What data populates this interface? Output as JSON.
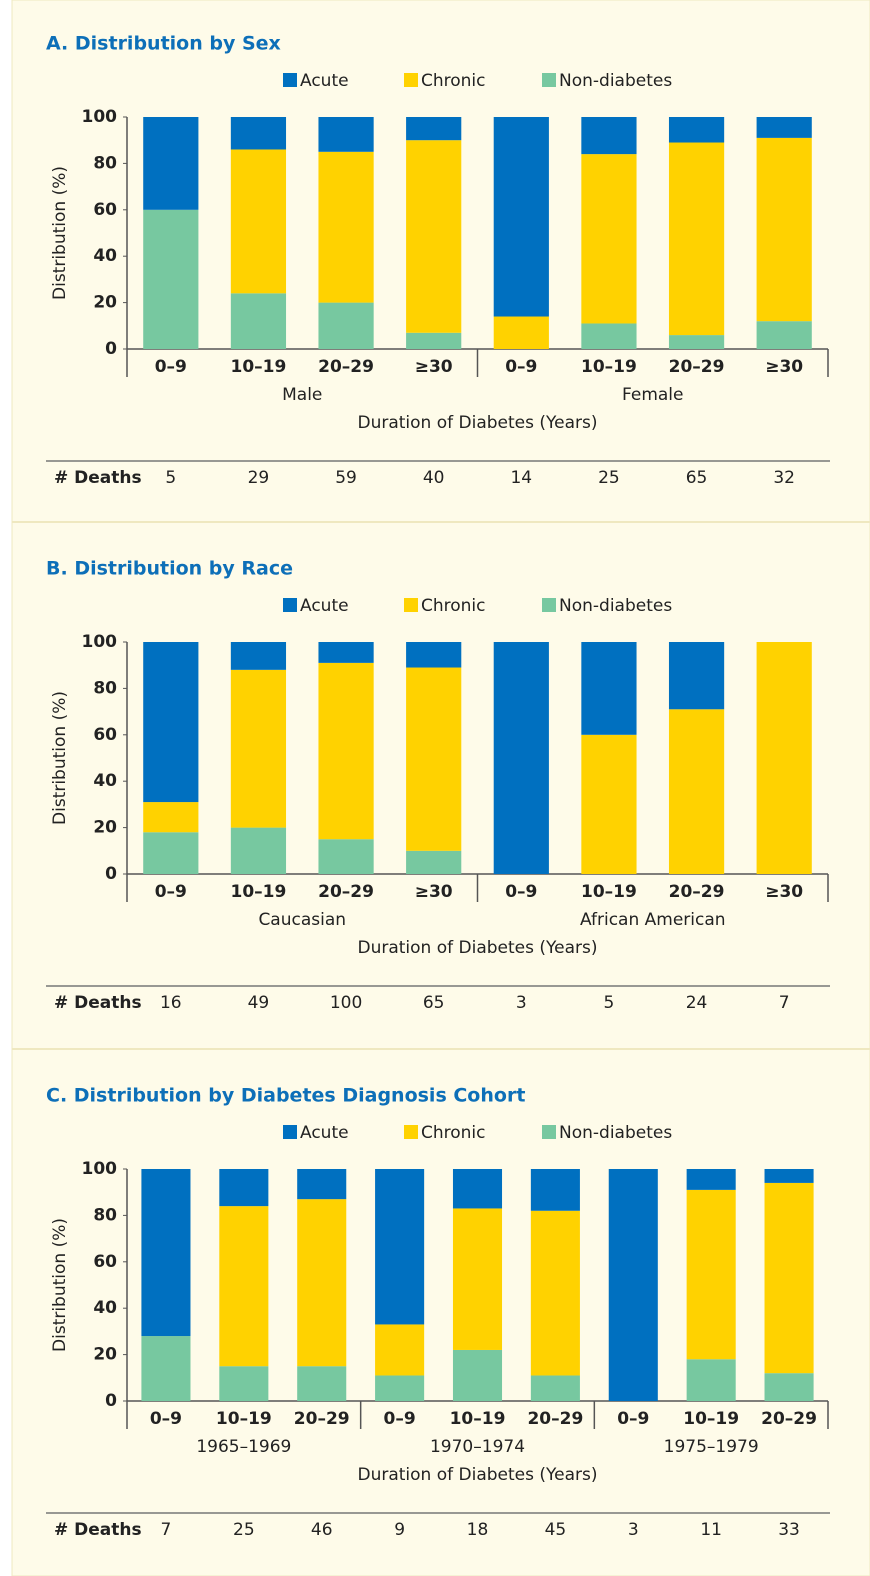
{
  "chart_data": [
    {
      "type": "bar",
      "stacked": true,
      "title": "A. Distribution by Sex",
      "groups": [
        {
          "name": "Male",
          "categories": [
            "0–9",
            "10–19",
            "20–29",
            "≥30"
          ]
        },
        {
          "name": "Female",
          "categories": [
            "0–9",
            "10–19",
            "20–29",
            "≥30"
          ]
        }
      ],
      "xlabel": "Duration of Diabetes (Years)",
      "ylabel": "Distribution (%)",
      "ylim": [
        0,
        100
      ],
      "yticks": [
        0,
        20,
        40,
        60,
        80,
        100
      ],
      "series": [
        {
          "name": "Non-diabetes",
          "color": "#77c8a0",
          "values": [
            60,
            24,
            20,
            7,
            0,
            11,
            6,
            12
          ]
        },
        {
          "name": "Chronic",
          "color": "#ffd200",
          "values": [
            0,
            62,
            65,
            83,
            14,
            73,
            83,
            79
          ]
        },
        {
          "name": "Acute",
          "color": "#0070c0",
          "values": [
            40,
            14,
            15,
            10,
            86,
            16,
            11,
            9
          ]
        }
      ],
      "legend_order": [
        "Acute",
        "Chronic",
        "Non-diabetes"
      ],
      "deaths_label": "# Deaths",
      "deaths": [
        5,
        29,
        59,
        40,
        14,
        25,
        65,
        32
      ]
    },
    {
      "type": "bar",
      "stacked": true,
      "title": "B. Distribution by Race",
      "groups": [
        {
          "name": "Caucasian",
          "categories": [
            "0–9",
            "10–19",
            "20–29",
            "≥30"
          ]
        },
        {
          "name": "African American",
          "categories": [
            "0–9",
            "10–19",
            "20–29",
            "≥30"
          ]
        }
      ],
      "xlabel": "Duration of Diabetes (Years)",
      "ylabel": "Distribution (%)",
      "ylim": [
        0,
        100
      ],
      "yticks": [
        0,
        20,
        40,
        60,
        80,
        100
      ],
      "series": [
        {
          "name": "Non-diabetes",
          "color": "#77c8a0",
          "values": [
            18,
            20,
            15,
            10,
            0,
            0,
            0,
            0
          ]
        },
        {
          "name": "Chronic",
          "color": "#ffd200",
          "values": [
            13,
            68,
            76,
            79,
            0,
            60,
            71,
            100
          ]
        },
        {
          "name": "Acute",
          "color": "#0070c0",
          "values": [
            69,
            12,
            9,
            11,
            100,
            40,
            29,
            0
          ]
        }
      ],
      "legend_order": [
        "Acute",
        "Chronic",
        "Non-diabetes"
      ],
      "deaths_label": "# Deaths",
      "deaths": [
        16,
        49,
        100,
        65,
        3,
        5,
        24,
        7
      ]
    },
    {
      "type": "bar",
      "stacked": true,
      "title": "C. Distribution by Diabetes Diagnosis Cohort",
      "groups": [
        {
          "name": "1965–1969",
          "categories": [
            "0–9",
            "10–19",
            "20–29"
          ]
        },
        {
          "name": "1970–1974",
          "categories": [
            "0–9",
            "10–19",
            "20–29"
          ]
        },
        {
          "name": "1975–1979",
          "categories": [
            "0–9",
            "10–19",
            "20–29"
          ]
        }
      ],
      "xlabel": "Duration of Diabetes (Years)",
      "ylabel": "Distribution (%)",
      "ylim": [
        0,
        100
      ],
      "yticks": [
        0,
        20,
        40,
        60,
        80,
        100
      ],
      "series": [
        {
          "name": "Non-diabetes",
          "color": "#77c8a0",
          "values": [
            28,
            15,
            15,
            11,
            22,
            11,
            0,
            18,
            12
          ]
        },
        {
          "name": "Chronic",
          "color": "#ffd200",
          "values": [
            0,
            69,
            72,
            22,
            61,
            71,
            0,
            73,
            82
          ]
        },
        {
          "name": "Acute",
          "color": "#0070c0",
          "values": [
            72,
            16,
            13,
            67,
            17,
            18,
            100,
            9,
            6
          ]
        }
      ],
      "legend_order": [
        "Acute",
        "Chronic",
        "Non-diabetes"
      ],
      "deaths_label": "# Deaths",
      "deaths": [
        7,
        25,
        46,
        9,
        18,
        45,
        3,
        11,
        33
      ]
    }
  ]
}
